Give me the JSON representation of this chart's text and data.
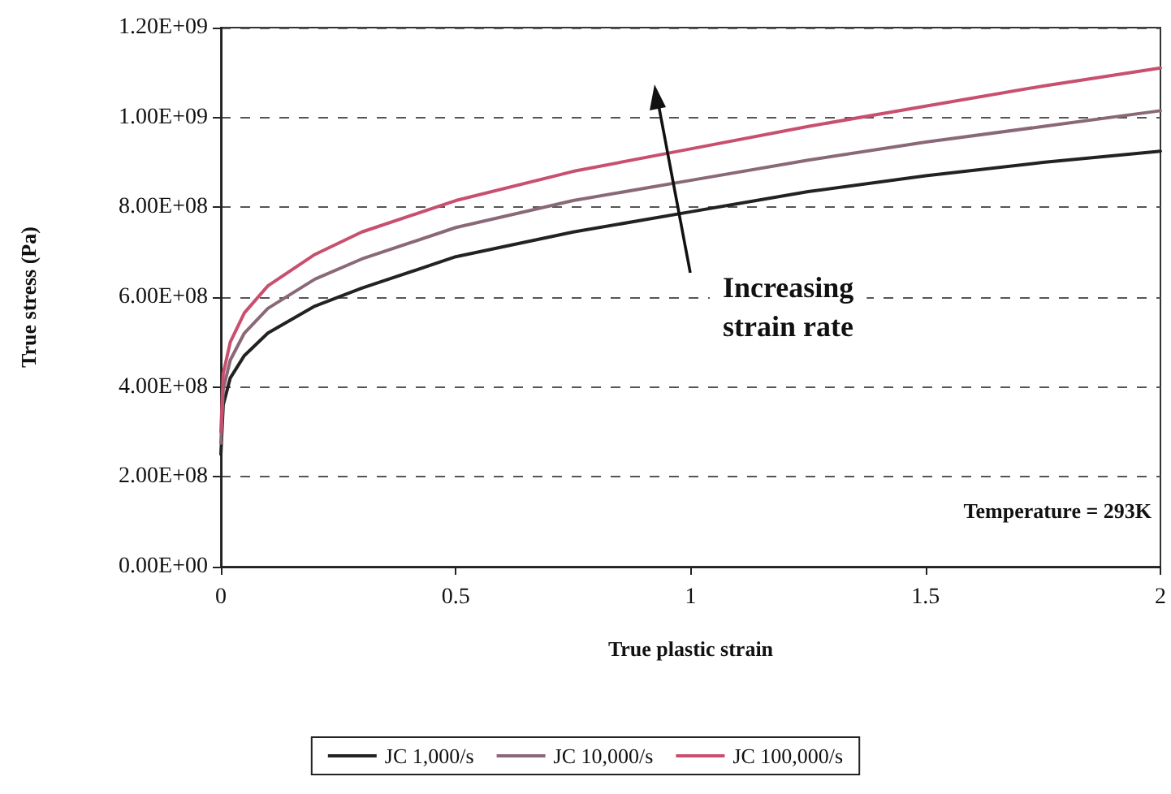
{
  "chart_data": {
    "type": "line",
    "xlabel": "True plastic strain",
    "ylabel": "True stress (Pa)",
    "x": [
      0,
      0.005,
      0.02,
      0.05,
      0.1,
      0.2,
      0.3,
      0.5,
      0.75,
      1,
      1.25,
      1.5,
      1.75,
      2
    ],
    "series": [
      {
        "name": "JC 1,000/s",
        "color": "#222222",
        "values": [
          250000000,
          360000000,
          420000000,
          470000000,
          520000000,
          580000000,
          620000000,
          690000000,
          745000000,
          790000000,
          835000000,
          870000000,
          900000000,
          925000000
        ]
      },
      {
        "name": "JC 10,000/s",
        "color": "#8a6878",
        "values": [
          275000000,
          395000000,
          460000000,
          520000000,
          575000000,
          640000000,
          685000000,
          755000000,
          815000000,
          860000000,
          905000000,
          945000000,
          980000000,
          1015000000
        ]
      },
      {
        "name": "JC 100,000/s",
        "color": "#c8506e",
        "values": [
          300000000,
          430000000,
          500000000,
          565000000,
          625000000,
          695000000,
          745000000,
          815000000,
          880000000,
          930000000,
          980000000,
          1025000000,
          1070000000,
          1110000000
        ]
      }
    ],
    "xlim": [
      0,
      2
    ],
    "xticks": [
      0,
      0.5,
      1,
      1.5,
      2
    ],
    "ylim": [
      0,
      1200000000
    ],
    "yticks": [
      {
        "value": 0,
        "label": "0.00E+00"
      },
      {
        "value": 200000000,
        "label": "2.00E+08"
      },
      {
        "value": 400000000,
        "label": "4.00E+08"
      },
      {
        "value": 600000000,
        "label": "6.00E+08"
      },
      {
        "value": 800000000,
        "label": "8.00E+08"
      },
      {
        "value": 1000000000,
        "label": "1.00E+09"
      },
      {
        "value": 1200000000,
        "label": "1.20E+09"
      }
    ],
    "annotations": [
      "Increasing\nstrain rate",
      "Temperature = 293K"
    ],
    "grid": "y",
    "legend": "bottom",
    "marker": "none",
    "line_style": "solid"
  }
}
